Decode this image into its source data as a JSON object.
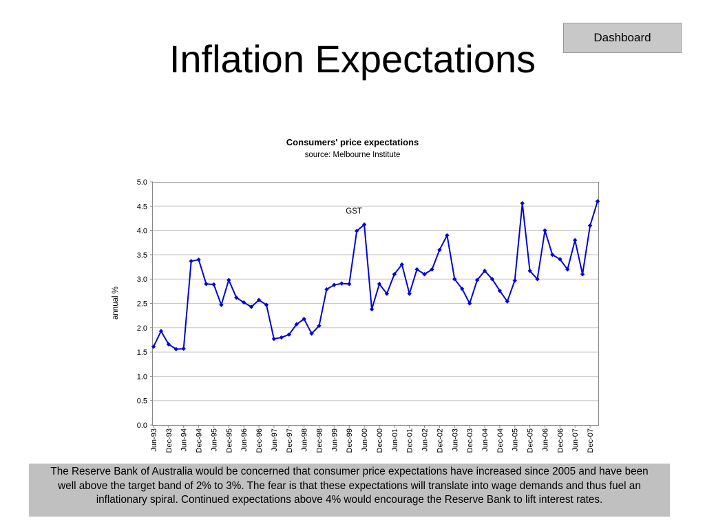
{
  "header": {
    "title": "Inflation Expectations",
    "dashboard_label": "Dashboard"
  },
  "chart_data": {
    "type": "line",
    "title": "Consumers' price expectations",
    "subtitle": "source: Melbourne Institute",
    "xlabel": "",
    "ylabel": "annual %",
    "ylim": [
      0,
      5
    ],
    "y_ticks": [
      "0.0",
      "0.5",
      "1.0",
      "1.5",
      "2.0",
      "2.5",
      "3.0",
      "3.5",
      "4.0",
      "4.5",
      "5.0"
    ],
    "x_tick_labels": [
      "Jun-93",
      "Dec-93",
      "Jun-94",
      "Dec-94",
      "Jun-95",
      "Dec-95",
      "Jun-96",
      "Dec-96",
      "Jun-97",
      "Dec-97",
      "Jun-98",
      "Dec-98",
      "Jun-99",
      "Dec-99",
      "Jun-00",
      "Dec-00",
      "Jun-01",
      "Dec-01",
      "Jun-02",
      "Dec-02",
      "Jun-03",
      "Dec-03",
      "Jun-04",
      "Dec-04",
      "Jun-05",
      "Dec-05",
      "Jun-06",
      "Dec-06",
      "Jun-07",
      "Dec-07"
    ],
    "grid": true,
    "legend": "none",
    "series_color": "#0000dd",
    "annotations": [
      {
        "text": "GST",
        "x": "Jun-00",
        "y": 4.35
      }
    ],
    "x": [
      "Jun-93",
      "Sep-93",
      "Dec-93",
      "Mar-94",
      "Jun-94",
      "Sep-94",
      "Dec-94",
      "Mar-95",
      "Jun-95",
      "Sep-95",
      "Dec-95",
      "Mar-96",
      "Jun-96",
      "Sep-96",
      "Dec-96",
      "Mar-97",
      "Jun-97",
      "Sep-97",
      "Dec-97",
      "Mar-98",
      "Jun-98",
      "Sep-98",
      "Dec-98",
      "Mar-99",
      "Jun-99",
      "Sep-99",
      "Dec-99",
      "Mar-00",
      "Jun-00",
      "Sep-00",
      "Dec-00",
      "Mar-01",
      "Jun-01",
      "Sep-01",
      "Dec-01",
      "Mar-02",
      "Jun-02",
      "Sep-02",
      "Dec-02",
      "Mar-03",
      "Jun-03",
      "Sep-03",
      "Dec-03",
      "Mar-04",
      "Jun-04",
      "Sep-04",
      "Dec-04",
      "Mar-05",
      "Jun-05",
      "Sep-05",
      "Dec-05",
      "Mar-06",
      "Jun-06",
      "Sep-06",
      "Dec-06",
      "Mar-07",
      "Jun-07",
      "Sep-07",
      "Dec-07",
      "Mar-08"
    ],
    "series": [
      {
        "values": [
          1.61,
          1.93,
          1.66,
          1.56,
          1.57,
          3.37,
          3.4,
          2.9,
          2.89,
          2.47,
          2.98,
          2.62,
          2.52,
          2.43,
          2.57,
          2.47,
          1.77,
          1.8,
          1.86,
          2.07,
          2.18,
          1.88,
          2.04,
          2.79,
          2.88,
          2.91,
          2.9,
          3.99,
          4.12,
          2.38,
          2.9,
          2.7,
          3.1,
          3.3,
          2.7,
          3.2,
          3.1,
          3.2,
          3.6,
          3.9,
          3.0,
          2.8,
          2.5,
          2.98,
          3.17,
          3.0,
          2.76,
          2.54,
          2.97,
          4.56,
          3.17,
          3.0,
          4.0,
          3.5,
          3.41,
          3.2,
          3.8,
          3.1,
          4.1,
          4.6
        ]
      }
    ]
  },
  "commentary": "The Reserve Bank of Australia would be concerned that consumer price expectations have increased since 2005 and have been well above the target band of 2% to 3%.  The fear is that these expectations will translate into wage demands and thus fuel an inflationary spiral.  Continued expectations above 4% would encourage the Reserve Bank to lift interest rates."
}
